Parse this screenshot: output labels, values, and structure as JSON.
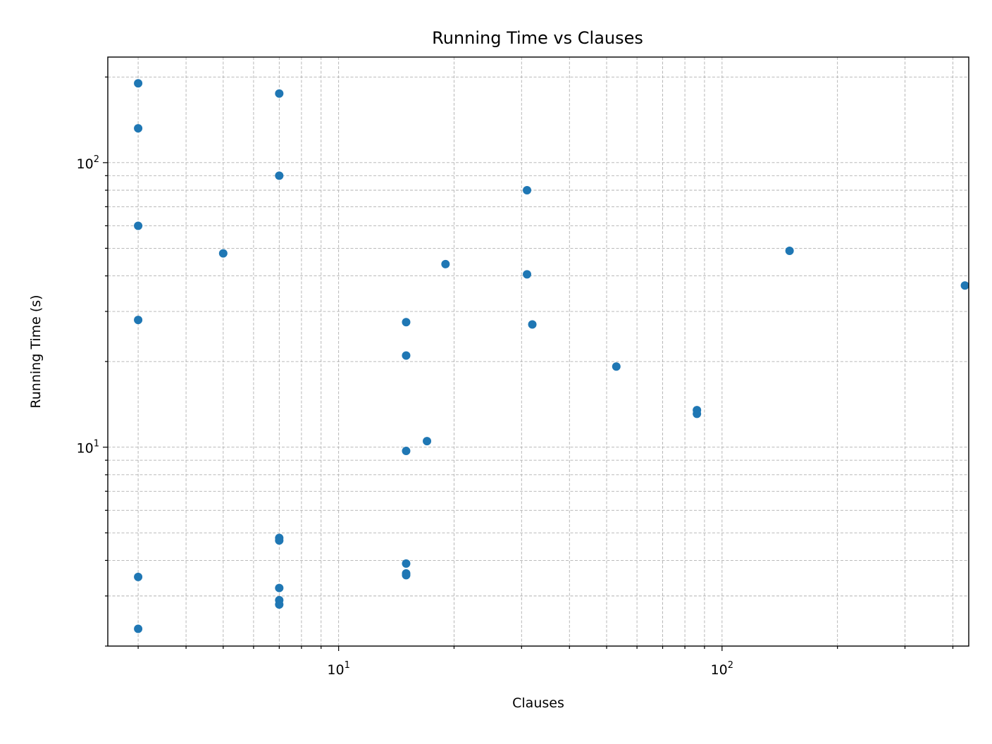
{
  "chart_data": {
    "type": "scatter",
    "title": "Running Time vs Clauses",
    "xlabel": "Clauses",
    "ylabel": "Running Time (s)",
    "xscale": "log",
    "yscale": "log",
    "xlim": [
      2.5,
      440
    ],
    "ylim": [
      2.0,
      235
    ],
    "grid": true,
    "marker_color": "#1f77b4",
    "x_ticks": [
      {
        "base": "10",
        "exp": "1",
        "value": 10
      },
      {
        "base": "10",
        "exp": "2",
        "value": 100
      }
    ],
    "y_ticks": [
      {
        "base": "10",
        "exp": "1",
        "value": 10
      },
      {
        "base": "10",
        "exp": "2",
        "value": 100
      }
    ],
    "points": [
      {
        "x": 3,
        "y": 190
      },
      {
        "x": 3,
        "y": 132
      },
      {
        "x": 3,
        "y": 60
      },
      {
        "x": 3,
        "y": 28
      },
      {
        "x": 3,
        "y": 3.5
      },
      {
        "x": 3,
        "y": 2.3
      },
      {
        "x": 5,
        "y": 48
      },
      {
        "x": 7,
        "y": 175
      },
      {
        "x": 7,
        "y": 90
      },
      {
        "x": 7,
        "y": 4.8
      },
      {
        "x": 7,
        "y": 4.7
      },
      {
        "x": 7,
        "y": 3.2
      },
      {
        "x": 7,
        "y": 2.9
      },
      {
        "x": 7,
        "y": 2.8
      },
      {
        "x": 15,
        "y": 27.5
      },
      {
        "x": 15,
        "y": 21
      },
      {
        "x": 15,
        "y": 9.7
      },
      {
        "x": 15,
        "y": 3.9
      },
      {
        "x": 15,
        "y": 3.6
      },
      {
        "x": 15,
        "y": 3.55
      },
      {
        "x": 17,
        "y": 10.5
      },
      {
        "x": 19,
        "y": 44
      },
      {
        "x": 31,
        "y": 80
      },
      {
        "x": 31,
        "y": 40.5
      },
      {
        "x": 32,
        "y": 27
      },
      {
        "x": 53,
        "y": 19.2
      },
      {
        "x": 86,
        "y": 13.5
      },
      {
        "x": 86,
        "y": 13.1
      },
      {
        "x": 150,
        "y": 49
      },
      {
        "x": 430,
        "y": 37
      }
    ]
  }
}
